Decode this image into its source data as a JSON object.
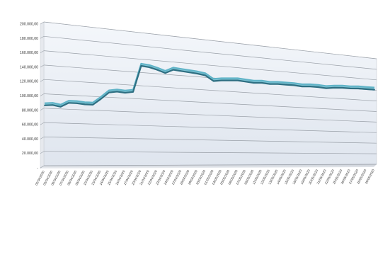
{
  "chart_data": {
    "type": "line",
    "title": "",
    "xlabel": "",
    "ylabel": "",
    "ylim": [
      0,
      200000
    ],
    "y_tick_labels": [
      "-",
      "20.000,00",
      "40.000,00",
      "60.000,00",
      "80.000,00",
      "100.000,00",
      "120.000,00",
      "140.000,00",
      "160.000,00",
      "180.000,00",
      "200.000,00"
    ],
    "x": [
      "02/04/2020",
      "03/04/2020",
      "06/04/2020",
      "07/04/2020",
      "08/04/2020",
      "09/04/2020",
      "10/04/2020",
      "13/04/2020",
      "14/04/2020",
      "15/04/2020",
      "16/04/2020",
      "17/04/2020",
      "20/04/2020",
      "21/04/2020",
      "22/04/2020",
      "23/04/2020",
      "24/04/2020",
      "27/04/2020",
      "28/04/2020",
      "29/04/2020",
      "30/04/2020",
      "01/05/2020",
      "04/05/2020",
      "05/05/2020",
      "06/05/2020",
      "07/05/2020",
      "08/05/2020",
      "11/05/2020",
      "12/05/2020",
      "13/05/2020",
      "14/05/2020",
      "15/05/2020",
      "18/05/2020",
      "19/05/2020",
      "20/05/2020",
      "21/05/2020",
      "22/05/2020",
      "25/05/2020",
      "26/05/2020",
      "27/05/2020",
      "28/05/2020",
      "29/05/2020"
    ],
    "series": [
      {
        "values": [
          84000,
          85000,
          83000,
          89000,
          89000,
          88000,
          88000,
          97000,
          107000,
          109000,
          108000,
          110000,
          150000,
          149000,
          146000,
          142000,
          148000,
          147000,
          146000,
          145000,
          143000,
          135000,
          137000,
          138000,
          139000,
          138000,
          137000,
          138000,
          137000,
          138000,
          138000,
          138000,
          137000,
          138000,
          138000,
          137000,
          139000,
          140000,
          140000,
          141000,
          141000,
          141000
        ],
        "color": "#4a9bb0"
      }
    ],
    "grid": true,
    "legend": "none",
    "style": "3d-ribbon"
  }
}
